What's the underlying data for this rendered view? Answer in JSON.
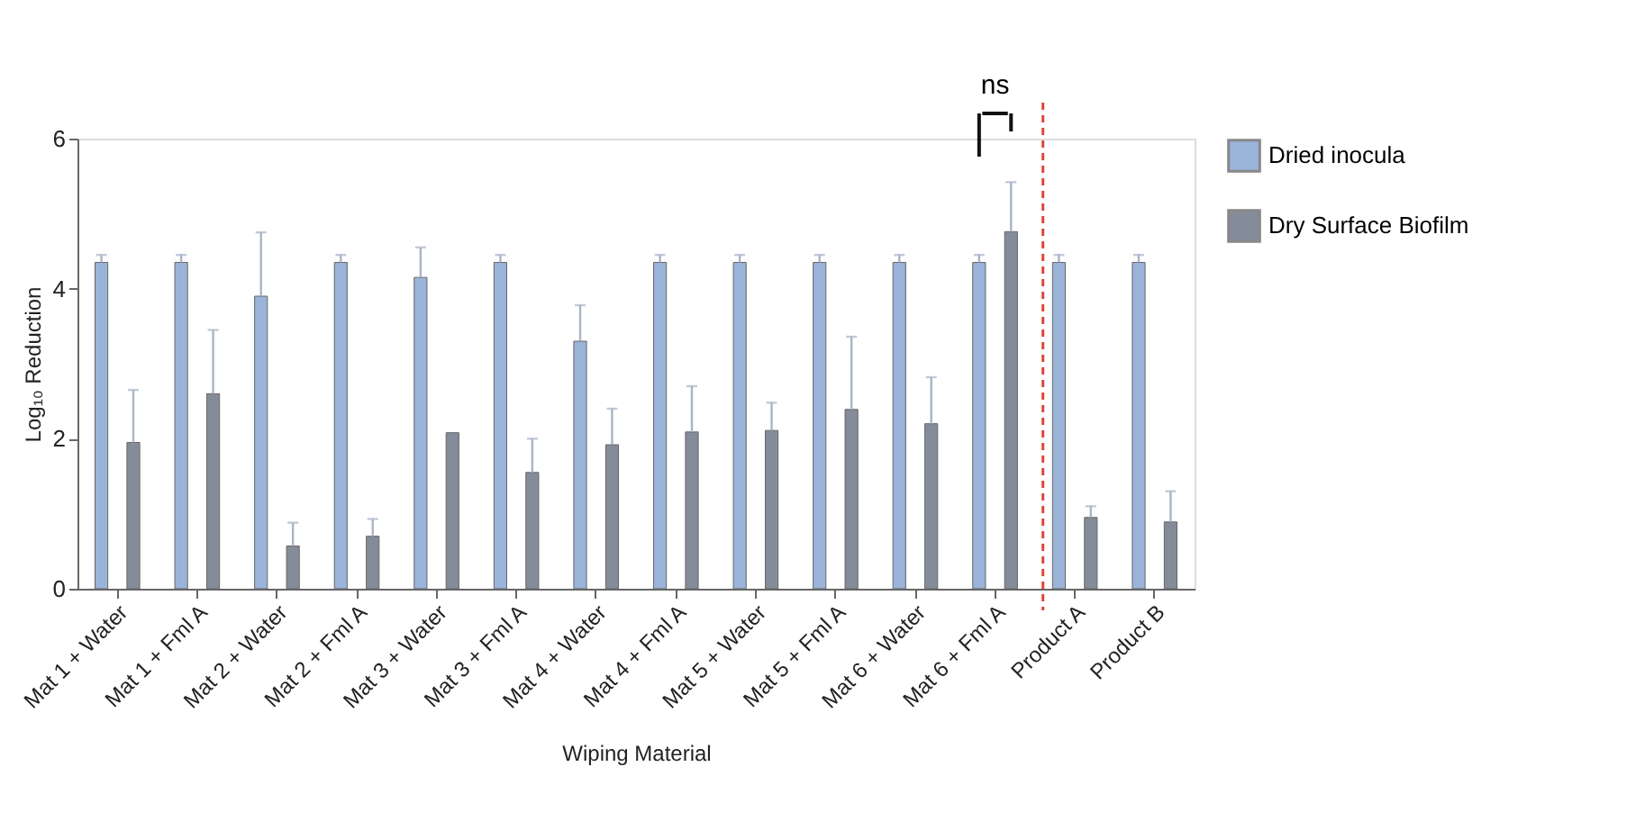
{
  "chart_data": {
    "type": "bar",
    "xlabel": "Wiping Material",
    "ylabel": "Log₁₀ Reduction",
    "categories": [
      "Mat 1 + Water",
      "Mat 1 + Fml A",
      "Mat 2 + Water",
      "Mat 2 + Fml A",
      "Mat 3 + Water",
      "Mat 3 + Fml A",
      "Mat 4 + Water",
      "Mat 4 + Fml A",
      "Mat 5 + Water",
      "Mat 5 + Fml A",
      "Mat 6 + Water",
      "Mat 6 + Fml A",
      "Product A",
      "Product B"
    ],
    "series": [
      {
        "name": "Dried inocula",
        "color": "#9ab3d9",
        "values": [
          4.35,
          4.35,
          3.9,
          4.35,
          4.15,
          4.35,
          3.3,
          4.35,
          4.35,
          4.35,
          4.35,
          4.35,
          4.35,
          4.35
        ],
        "errors": [
          [
            4.35,
            4.45
          ],
          [
            4.35,
            4.45
          ],
          [
            3.9,
            4.75
          ],
          [
            4.35,
            4.45
          ],
          [
            4.15,
            4.55
          ],
          [
            4.35,
            4.45
          ],
          [
            3.3,
            3.78
          ],
          [
            4.35,
            4.45
          ],
          [
            4.35,
            4.45
          ],
          [
            4.35,
            4.45
          ],
          [
            4.35,
            4.45
          ],
          [
            4.35,
            4.45
          ],
          [
            4.35,
            4.45
          ],
          [
            4.35,
            4.45
          ]
        ]
      },
      {
        "name": "Dry Surface Biofilm",
        "color": "#858c99",
        "values": [
          1.95,
          2.6,
          0.57,
          0.7,
          2.08,
          1.55,
          1.92,
          2.09,
          2.11,
          2.39,
          2.2,
          4.76,
          0.95,
          0.89
        ],
        "errors": [
          [
            1.95,
            2.65
          ],
          [
            2.6,
            3.45
          ],
          [
            0.57,
            0.88
          ],
          [
            0.7,
            0.93
          ],
          null,
          [
            1.55,
            2.0
          ],
          [
            1.92,
            2.4
          ],
          [
            2.09,
            2.7
          ],
          [
            2.11,
            2.48
          ],
          [
            2.39,
            3.36
          ],
          [
            2.2,
            2.82
          ],
          [
            4.76,
            5.42
          ],
          [
            0.95,
            1.1
          ],
          [
            0.89,
            1.3
          ]
        ]
      }
    ],
    "ylim": [
      0,
      6
    ],
    "yticks": [
      0,
      2,
      4,
      6
    ],
    "grid": false,
    "legend": "top right",
    "ref_lines": [
      {
        "axis": "x",
        "value": "Product A",
        "color": "#e0453a",
        "line_style": "dashed"
      }
    ],
    "annotations": [
      "ns"
    ]
  }
}
